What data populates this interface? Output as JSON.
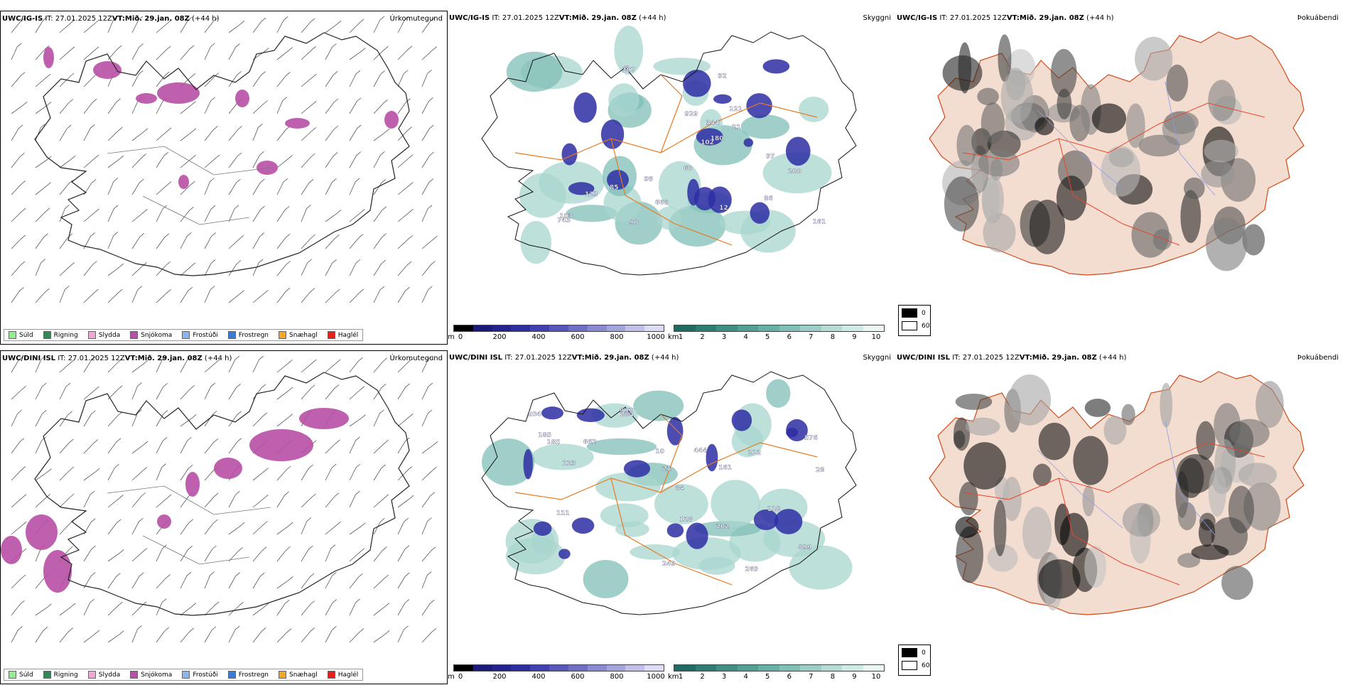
{
  "panels": [
    {
      "model": "UWC/IG-IS",
      "it": "IT: 27.01.2025 12Z",
      "vt_label": "VT:",
      "vt_value": "Mið. 29.jan. 08Z",
      "lead": "(+44 h)",
      "title": "Úrkomutegund"
    },
    {
      "model": "UWC/IG-IS",
      "it": "IT: 27.01.2025 12Z",
      "vt_label": "VT:",
      "vt_value": "Mið. 29.jan. 08Z",
      "lead": "(+44 h)",
      "title": "Skyggni"
    },
    {
      "model": "UWC/IG-IS",
      "it": "IT: 27.01.2025 12Z",
      "vt_label": "VT:",
      "vt_value": "Mið. 29.jan. 08Z",
      "lead": "(+44 h)",
      "title": "Þokuábendi"
    },
    {
      "model": "UWC/DINI ISL",
      "it": "IT: 27.01.2025 12Z",
      "vt_label": "VT:",
      "vt_value": "Mið. 29.jan. 08Z",
      "lead": "(+44 h)",
      "title": "Úrkomutegund"
    },
    {
      "model": "UWC/DINI ISL",
      "it": "IT: 27.01.2025 12Z",
      "vt_label": "VT:",
      "vt_value": "Mið. 29.jan. 08Z",
      "lead": "(+44 h)",
      "title": "Skyggni"
    },
    {
      "model": "UWC/DINI ISL",
      "it": "IT: 27.01.2025 12Z",
      "vt_label": "VT:",
      "vt_value": "Mið. 29.jan. 08Z",
      "lead": "(+44 h)",
      "title": "Þokuábendi"
    }
  ],
  "precip_legend": [
    {
      "label": "Súld",
      "color": "#90ee90"
    },
    {
      "label": "Rigning",
      "color": "#2e8b57"
    },
    {
      "label": "Slydda",
      "color": "#f4a6d7"
    },
    {
      "label": "Snjókoma",
      "color": "#b84fa6"
    },
    {
      "label": "Frostúði",
      "color": "#87b7f0"
    },
    {
      "label": "Frostregn",
      "color": "#3a7bd5"
    },
    {
      "label": "Snæhagl",
      "color": "#f5a623"
    },
    {
      "label": "Haglél",
      "color": "#e8201c"
    }
  ],
  "ceiling_bar": {
    "unit": "m",
    "ticks": [
      "0",
      "200",
      "400",
      "600",
      "800",
      "1000"
    ],
    "colors": [
      "#000000",
      "#1a1a7a",
      "#23238f",
      "#2e2ea3",
      "#4040b0",
      "#5656bb",
      "#6f6fc6",
      "#8a8ad2",
      "#a5a5de",
      "#c0c0ea",
      "#dcdcf5"
    ]
  },
  "vis_bar": {
    "unit": "km",
    "ticks": [
      "1",
      "2",
      "3",
      "4",
      "5",
      "6",
      "7",
      "8",
      "9",
      "10"
    ],
    "colors": [
      "#1f6b63",
      "#2e7d74",
      "#3f8f85",
      "#529f95",
      "#68afa6",
      "#80bfb6",
      "#9acec6",
      "#b5ddd6",
      "#d0ebe6",
      "#ecf7f5"
    ]
  },
  "cloud_key": {
    "top": "0",
    "bottom": "60"
  },
  "ig_ceiling_labels": [
    "344",
    "929",
    "92",
    "668",
    "21",
    "85",
    "102",
    "180",
    "86",
    "98",
    "12",
    "60",
    "123",
    "103",
    "97",
    "107",
    "90",
    "161",
    "743",
    "121",
    "8",
    "200"
  ],
  "dini_ceiling_labels": [
    "662",
    "899",
    "212",
    "269",
    "444",
    "284",
    "576",
    "997",
    "111",
    "123",
    "84",
    "10",
    "202",
    "249",
    "161",
    "118",
    "128",
    "185",
    "28",
    "204",
    "185",
    "21"
  ]
}
